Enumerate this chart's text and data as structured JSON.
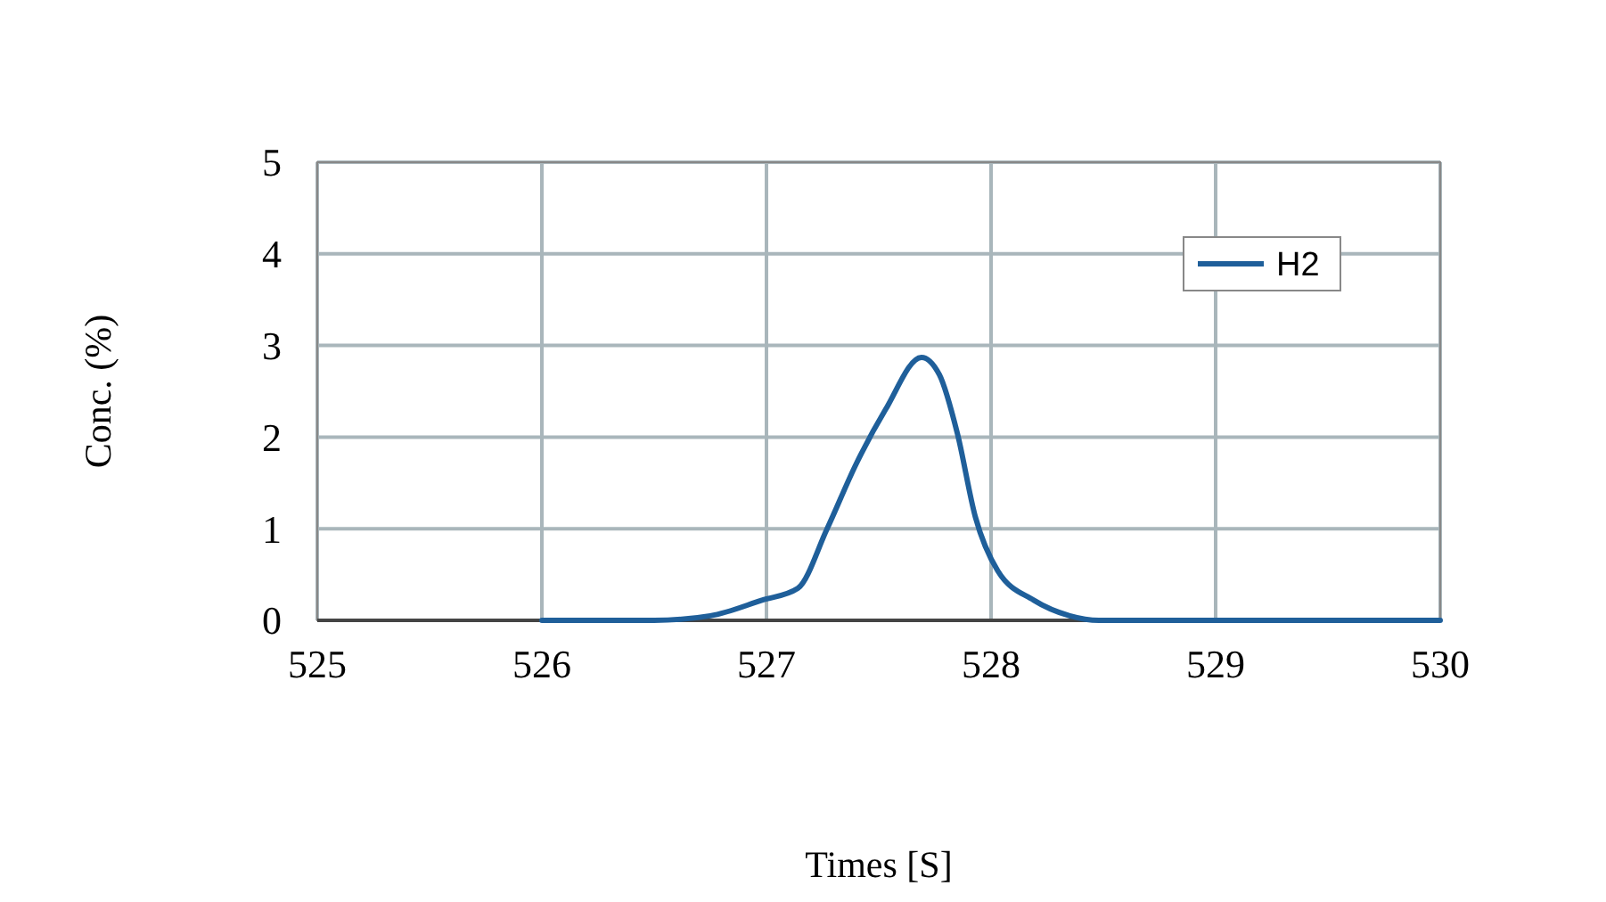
{
  "chart_data": {
    "type": "line",
    "xlabel": "Times [S]",
    "ylabel": "Conc. (%)",
    "xlim": [
      525,
      530
    ],
    "xticks": [
      525,
      526,
      527,
      528,
      529,
      530
    ],
    "ylim": [
      0,
      5
    ],
    "yticks": [
      0,
      1,
      2,
      3,
      4,
      5
    ],
    "grid": true,
    "legend": "top right",
    "marker": "none",
    "line_style": "solid",
    "series": [
      {
        "name": "H2",
        "color": "#1f5f9a",
        "x": [
          526,
          526.5,
          526.75,
          526.98,
          527.14,
          527.27,
          527.4,
          527.53,
          527.69,
          527.77,
          527.85,
          527.93,
          528.03,
          528.19,
          528.35,
          528.48,
          529,
          530
        ],
        "values": [
          0,
          0,
          0.05,
          0.22,
          0.35,
          1,
          1.71,
          2.3,
          2.87,
          2.68,
          2.04,
          1.13,
          0.54,
          0.22,
          0.05,
          0,
          0,
          0
        ]
      }
    ]
  }
}
